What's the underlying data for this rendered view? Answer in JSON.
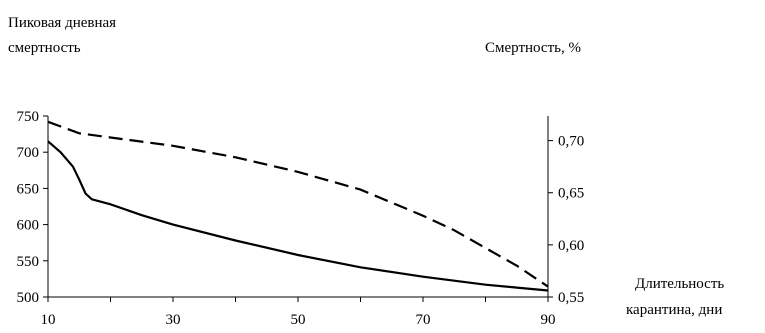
{
  "chart_data": {
    "type": "line",
    "left_axis_label": [
      "Пиковая дневная",
      "смертность"
    ],
    "right_axis_label": "Смертность, %",
    "x_axis_label": [
      "Длительность",
      "карантина, дни"
    ],
    "xlim": [
      10,
      90
    ],
    "x_ticks": [
      10,
      30,
      50,
      70,
      90
    ],
    "y_left_lim": [
      500,
      750
    ],
    "y_left_ticks": [
      500,
      550,
      600,
      650,
      700,
      750
    ],
    "y_right_lim": [
      0.55,
      0.7236
    ],
    "y_right_ticks": [
      0.55,
      0.6,
      0.65,
      0.7
    ],
    "y_right_tick_labels": [
      "0,55",
      "0,60",
      "0,65",
      "0,70"
    ],
    "series": [
      {
        "axis": "left",
        "style": "solid",
        "x": [
          10,
          12,
          14,
          15,
          16,
          17,
          20,
          25,
          30,
          40,
          50,
          60,
          70,
          80,
          85,
          90
        ],
        "y": [
          715,
          700,
          680,
          662,
          643,
          635,
          628,
          613,
          600,
          578,
          558,
          541,
          528,
          517,
          513,
          509
        ]
      },
      {
        "axis": "right",
        "style": "dashed",
        "x": [
          10,
          15,
          20,
          30,
          40,
          50,
          60,
          70,
          75,
          80,
          85,
          90
        ],
        "y": [
          0.718,
          0.707,
          0.703,
          0.695,
          0.684,
          0.67,
          0.653,
          0.628,
          0.614,
          0.597,
          0.58,
          0.56
        ]
      }
    ]
  }
}
